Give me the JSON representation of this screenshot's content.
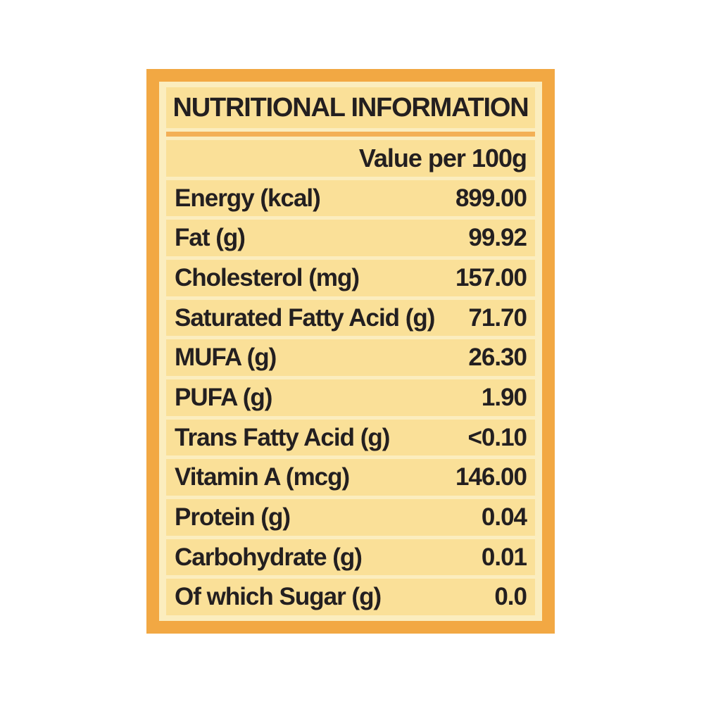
{
  "card": {
    "title": "NUTRITIONAL INFORMATION",
    "subtitle": "Value per 100g",
    "rows": [
      {
        "label": "Energy (kcal)",
        "value": "899.00"
      },
      {
        "label": "Fat (g)",
        "value": "99.92"
      },
      {
        "label": "Cholesterol (mg)",
        "value": "157.00"
      },
      {
        "label": "Saturated Fatty Acid (g)",
        "value": "71.70"
      },
      {
        "label": "MUFA (g)",
        "value": "26.30"
      },
      {
        "label": "PUFA (g)",
        "value": "1.90"
      },
      {
        "label": "Trans Fatty Acid (g)",
        "value": "<0.10"
      },
      {
        "label": "Vitamin A (mcg)",
        "value": "146.00"
      },
      {
        "label": "Protein (g)",
        "value": "0.04"
      },
      {
        "label": "Carbohydrate (g)",
        "value": "0.01"
      },
      {
        "label": "Of which Sugar (g)",
        "value": "0.0"
      }
    ],
    "colors": {
      "frame_orange": "#F2A843",
      "header_divider_orange": "#F3B056",
      "row_yellow": "#FAE098",
      "cream_background": "#FBEDBE",
      "text": "#231F20"
    }
  }
}
